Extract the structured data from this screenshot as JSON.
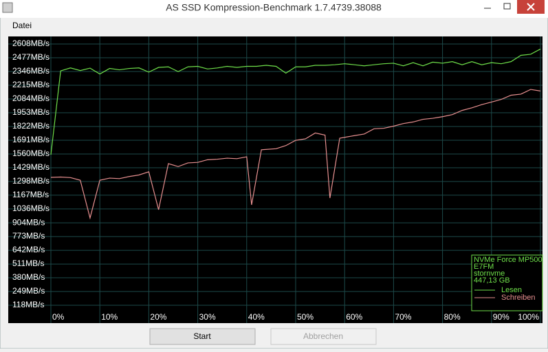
{
  "window": {
    "title": "AS SSD Kompression-Benchmark 1.7.4739.38088",
    "menu": [
      "Datei"
    ],
    "buttons": [
      "Start",
      "Abbrechen"
    ]
  },
  "chart_data": {
    "type": "line",
    "ylim": [
      -52,
      2680
    ],
    "yticks": [
      {
        "value": 118,
        "label": "118MB/s"
      },
      {
        "value": 249,
        "label": "249MB/s"
      },
      {
        "value": 380,
        "label": "380MB/s"
      },
      {
        "value": 511,
        "label": "511MB/s"
      },
      {
        "value": 642,
        "label": "642MB/s"
      },
      {
        "value": 773,
        "label": "773MB/s"
      },
      {
        "value": 904,
        "label": "904MB/s"
      },
      {
        "value": 1036,
        "label": "1036MB/s"
      },
      {
        "value": 1167,
        "label": "1167MB/s"
      },
      {
        "value": 1298,
        "label": "1298MB/s"
      },
      {
        "value": 1429,
        "label": "1429MB/s"
      },
      {
        "value": 1560,
        "label": "1560MB/s"
      },
      {
        "value": 1691,
        "label": "1691MB/s"
      },
      {
        "value": 1822,
        "label": "1822MB/s"
      },
      {
        "value": 1953,
        "label": "1953MB/s"
      },
      {
        "value": 2084,
        "label": "2084MB/s"
      },
      {
        "value": 2215,
        "label": "2215MB/s"
      },
      {
        "value": 2346,
        "label": "2346MB/s"
      },
      {
        "value": 2477,
        "label": "2477MB/s"
      },
      {
        "value": 2608,
        "label": "2608MB/s"
      }
    ],
    "xlim": [
      0,
      100
    ],
    "xticks": [
      {
        "value": 0,
        "label": "0%"
      },
      {
        "value": 10,
        "label": "10%"
      },
      {
        "value": 20,
        "label": "20%"
      },
      {
        "value": 30,
        "label": "30%"
      },
      {
        "value": 40,
        "label": "40%"
      },
      {
        "value": 50,
        "label": "50%"
      },
      {
        "value": 60,
        "label": "60%"
      },
      {
        "value": 70,
        "label": "70%"
      },
      {
        "value": 80,
        "label": "80%"
      },
      {
        "value": 90,
        "label": "90%"
      },
      {
        "value": 100,
        "label": "100%"
      }
    ],
    "grid": true,
    "info_lines": [
      "NVMe Force MP500",
      "E7FM",
      "stornvme",
      "447,13 GB"
    ],
    "series": [
      {
        "name": "Lesen",
        "color": "#6fe04a",
        "x": [
          0,
          2,
          4,
          6,
          8,
          10,
          12,
          14,
          16,
          18,
          20,
          22,
          24,
          26,
          28,
          30,
          32,
          34,
          36,
          38,
          40,
          42,
          44,
          46,
          48,
          50,
          52,
          54,
          56,
          58,
          60,
          62,
          64,
          66,
          68,
          70,
          72,
          74,
          76,
          78,
          80,
          82,
          84,
          86,
          88,
          90,
          92,
          94,
          96,
          98,
          100
        ],
        "values": [
          1553,
          2352,
          2380,
          2355,
          2378,
          2322,
          2375,
          2362,
          2375,
          2380,
          2340,
          2385,
          2390,
          2345,
          2390,
          2395,
          2370,
          2380,
          2395,
          2385,
          2395,
          2395,
          2405,
          2395,
          2330,
          2390,
          2390,
          2405,
          2405,
          2410,
          2420,
          2410,
          2400,
          2410,
          2420,
          2425,
          2400,
          2430,
          2400,
          2435,
          2425,
          2440,
          2410,
          2440,
          2410,
          2430,
          2420,
          2440,
          2500,
          2510,
          2560
        ]
      },
      {
        "name": "Schreiben",
        "color": "#e89090",
        "x": [
          0,
          2,
          4,
          6,
          8,
          10,
          12,
          14,
          16,
          18,
          20,
          22,
          24,
          26,
          28,
          30,
          32,
          34,
          36,
          38,
          40,
          41,
          43,
          46,
          48,
          50,
          52,
          54,
          56,
          57,
          59,
          62,
          64,
          66,
          68,
          70,
          72,
          74,
          76,
          78,
          80,
          82,
          84,
          86,
          88,
          90,
          92,
          94,
          96,
          98,
          100
        ],
        "values": [
          1337,
          1340,
          1335,
          1310,
          950,
          1310,
          1330,
          1325,
          1345,
          1360,
          1390,
          1029,
          1468,
          1440,
          1475,
          1480,
          1505,
          1510,
          1520,
          1515,
          1533,
          1075,
          1600,
          1610,
          1640,
          1690,
          1704,
          1760,
          1740,
          1140,
          1710,
          1735,
          1750,
          1800,
          1805,
          1825,
          1850,
          1865,
          1890,
          1900,
          1915,
          1935,
          1975,
          2000,
          2030,
          2055,
          2080,
          2120,
          2130,
          2175,
          2160
        ]
      }
    ]
  }
}
